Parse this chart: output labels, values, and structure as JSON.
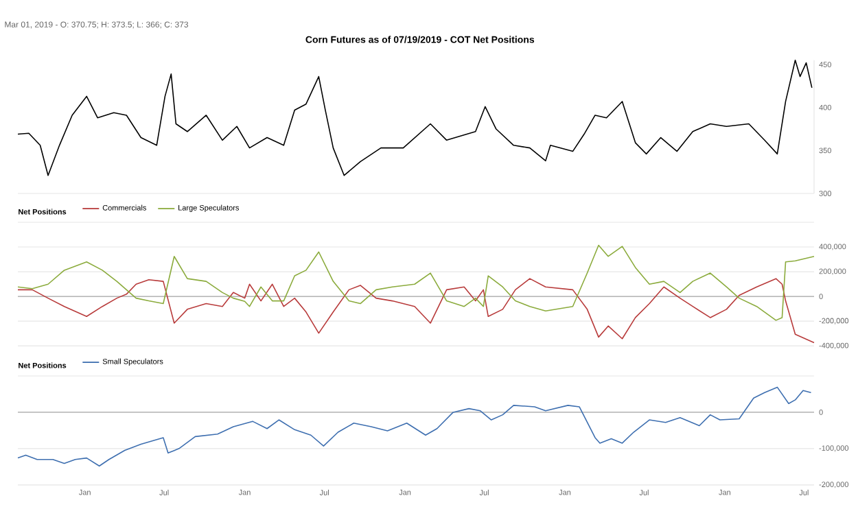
{
  "chart_data": [
    {
      "type": "line",
      "title": "Corn Futures as of 07/19/2019 - COT Net Positions",
      "annotations": [
        "Mar 01, 2019 - O: 370.75; H: 373.5; L: 366; C: 373"
      ],
      "x": [
        "2014-08-01",
        "2014-08-26",
        "2014-09-21",
        "2014-10-09",
        "2014-11-04",
        "2014-12-03",
        "2015-01-05",
        "2015-01-30",
        "2015-03-08",
        "2015-04-06",
        "2015-05-09",
        "2015-06-14",
        "2015-07-03",
        "2015-07-17",
        "2015-07-28",
        "2015-08-23",
        "2015-10-05",
        "2015-11-11",
        "2015-12-14",
        "2016-01-12",
        "2016-02-21",
        "2016-03-30",
        "2016-04-24",
        "2016-05-20",
        "2016-06-18",
        "2016-07-03",
        "2016-07-21",
        "2016-08-15",
        "2016-09-21",
        "2016-11-07",
        "2016-12-28",
        "2017-02-28",
        "2017-04-06",
        "2017-06-11",
        "2017-07-03",
        "2017-07-28",
        "2017-09-06",
        "2017-10-13",
        "2017-11-18",
        "2017-11-29",
        "2018-01-19",
        "2018-02-14",
        "2018-03-11",
        "2018-04-06",
        "2018-05-12",
        "2018-06-11",
        "2018-07-06",
        "2018-08-08",
        "2018-09-14",
        "2018-10-20",
        "2018-11-29",
        "2019-01-05",
        "2019-02-25",
        "2019-04-02",
        "2019-05-01",
        "2019-05-20",
        "2019-06-11",
        "2019-06-22",
        "2019-07-06",
        "2019-07-19"
      ],
      "series": [
        {
          "color": "#000000",
          "values": [
            369,
            370,
            356,
            321,
            356,
            391,
            413,
            388,
            394,
            391,
            365,
            356,
            413,
            439,
            381,
            372,
            391,
            362,
            378,
            353,
            365,
            356,
            397,
            404,
            436,
            397,
            353,
            321,
            337,
            353,
            353,
            381,
            362,
            372,
            401,
            375,
            356,
            353,
            338,
            356,
            349,
            369,
            391,
            388,
            407,
            359,
            346,
            365,
            349,
            372,
            381,
            378,
            381,
            362,
            346,
            407,
            455,
            436,
            452,
            423
          ]
        }
      ],
      "xlim": [
        "2014-08-01",
        "2019-07-24"
      ],
      "ylim": [
        300,
        455
      ],
      "yticks": [
        300,
        350,
        400,
        450
      ],
      "tick_labels": "y"
    },
    {
      "type": "line",
      "legend_title": "Net Positions",
      "legend": "top left",
      "grid": "y",
      "x": [
        "2014-08-01",
        "2014-09-03",
        "2014-10-09",
        "2014-11-15",
        "2015-01-05",
        "2015-02-10",
        "2015-03-15",
        "2015-04-06",
        "2015-04-28",
        "2015-05-27",
        "2015-06-29",
        "2015-07-24",
        "2015-08-23",
        "2015-10-05",
        "2015-11-11",
        "2015-12-06",
        "2016-01-01",
        "2016-01-12",
        "2016-02-07",
        "2016-03-04",
        "2016-03-30",
        "2016-04-24",
        "2016-05-20",
        "2016-06-18",
        "2016-07-21",
        "2016-08-26",
        "2016-09-21",
        "2016-10-27",
        "2016-12-03",
        "2017-01-23",
        "2017-02-28",
        "2017-04-06",
        "2017-05-16",
        "2017-06-11",
        "2017-06-29",
        "2017-07-10",
        "2017-08-12",
        "2017-09-10",
        "2017-10-13",
        "2017-11-18",
        "2018-01-19",
        "2018-02-21",
        "2018-03-19",
        "2018-04-10",
        "2018-05-12",
        "2018-06-11",
        "2018-07-13",
        "2018-08-15",
        "2018-09-21",
        "2018-10-20",
        "2018-11-29",
        "2019-01-05",
        "2019-02-03",
        "2019-03-15",
        "2019-04-28",
        "2019-05-12",
        "2019-05-20",
        "2019-06-11",
        "2019-07-24"
      ],
      "series": [
        {
          "name": "Commercials",
          "color": "#b83b3b",
          "values": [
            54000,
            54000,
            -14000,
            -81000,
            -162000,
            -81000,
            -14000,
            18000,
            99000,
            135000,
            122000,
            -216000,
            -104000,
            -58000,
            -81000,
            32000,
            -14000,
            99000,
            -36000,
            99000,
            -81000,
            -14000,
            -126000,
            -297000,
            -126000,
            54000,
            90000,
            -14000,
            -36000,
            -81000,
            -216000,
            54000,
            77000,
            -36000,
            54000,
            -162000,
            -104000,
            54000,
            144000,
            77000,
            54000,
            -104000,
            -329000,
            -239000,
            -342000,
            -171000,
            -58000,
            77000,
            -14000,
            -81000,
            -171000,
            -104000,
            9000,
            77000,
            144000,
            99000,
            -36000,
            -306000,
            -374000
          ]
        },
        {
          "name": "Large Speculators",
          "color": "#8bab3c",
          "values": [
            77000,
            63000,
            99000,
            212000,
            279000,
            212000,
            122000,
            54000,
            -14000,
            -36000,
            -58000,
            324000,
            144000,
            122000,
            32000,
            -14000,
            -40000,
            -81000,
            77000,
            -36000,
            -36000,
            167000,
            212000,
            360000,
            122000,
            -36000,
            -58000,
            54000,
            77000,
            99000,
            189000,
            -36000,
            -81000,
            -14000,
            -81000,
            167000,
            77000,
            -36000,
            -81000,
            -117000,
            -81000,
            189000,
            414000,
            324000,
            405000,
            234000,
            99000,
            122000,
            32000,
            122000,
            189000,
            77000,
            -14000,
            -81000,
            -193000,
            -171000,
            279000,
            288000,
            324000
          ]
        }
      ],
      "ref_lines": [
        {
          "axis": "y",
          "value": 0,
          "color": "#aaaaaa"
        }
      ],
      "xlim": [
        "2014-08-01",
        "2019-07-24"
      ],
      "ylim": [
        -420000,
        600000
      ],
      "yticks": [
        {
          "value": -400000,
          "label": "-400,000"
        },
        {
          "value": -200000,
          "label": "-200,000"
        },
        0,
        {
          "value": 200000,
          "label": "200,000"
        },
        {
          "value": 400000,
          "label": "400,000"
        },
        {
          "value": 600000,
          "label": null
        }
      ],
      "tick_labels": "y"
    },
    {
      "type": "line",
      "legend_title": "Net Positions",
      "legend": "top left",
      "grid": "y",
      "x": [
        "2014-08-01",
        "2014-08-19",
        "2014-09-14",
        "2014-10-20",
        "2014-11-15",
        "2014-12-10",
        "2015-01-05",
        "2015-02-03",
        "2015-02-25",
        "2015-04-02",
        "2015-05-09",
        "2015-06-29",
        "2015-07-10",
        "2015-08-04",
        "2015-09-10",
        "2015-10-31",
        "2015-12-06",
        "2016-01-19",
        "2016-02-21",
        "2016-03-19",
        "2016-04-24",
        "2016-05-31",
        "2016-06-29",
        "2016-08-01",
        "2016-09-06",
        "2016-10-16",
        "2016-11-22",
        "2017-01-05",
        "2017-02-17",
        "2017-03-15",
        "2017-04-21",
        "2017-05-27",
        "2017-06-22",
        "2017-07-17",
        "2017-08-12",
        "2017-09-06",
        "2017-10-24",
        "2017-11-18",
        "2018-01-08",
        "2018-02-03",
        "2018-03-11",
        "2018-03-22",
        "2018-04-17",
        "2018-05-12",
        "2018-06-07",
        "2018-07-13",
        "2018-08-19",
        "2018-09-21",
        "2018-11-04",
        "2018-11-29",
        "2018-12-21",
        "2019-02-03",
        "2019-03-08",
        "2019-04-02",
        "2019-05-01",
        "2019-05-27",
        "2019-06-11",
        "2019-06-29",
        "2019-07-17"
      ],
      "series": [
        {
          "name": "Small Speculators",
          "color": "#3e6fb0",
          "values": [
            -126000,
            -118000,
            -130000,
            -130000,
            -141000,
            -130000,
            -126000,
            -148000,
            -130000,
            -105000,
            -88000,
            -70000,
            -112000,
            -100000,
            -67000,
            -60000,
            -40000,
            -25000,
            -45000,
            -21000,
            -48000,
            -63000,
            -93000,
            -55000,
            -30000,
            -40000,
            -51000,
            -30000,
            -63000,
            -45000,
            0,
            10000,
            4000,
            -21000,
            -7000,
            19000,
            15000,
            4000,
            19000,
            15000,
            -70000,
            -85000,
            -73000,
            -85000,
            -55000,
            -21000,
            -28000,
            -15000,
            -37000,
            -7000,
            -21000,
            -18000,
            39000,
            54000,
            69000,
            24000,
            34000,
            60000,
            54000
          ]
        }
      ],
      "ref_lines": [
        {
          "axis": "y",
          "value": 0,
          "color": "#aaaaaa"
        }
      ],
      "xlim": [
        "2014-08-01",
        "2019-07-24"
      ],
      "xticks": [
        {
          "value": "2015-01-01",
          "label": "Jan"
        },
        {
          "value": "2015-07-01",
          "label": "Jul"
        },
        {
          "value": "2016-01-01",
          "label": "Jan"
        },
        {
          "value": "2016-07-01",
          "label": "Jul"
        },
        {
          "value": "2017-01-01",
          "label": "Jan"
        },
        {
          "value": "2017-07-01",
          "label": "Jul"
        },
        {
          "value": "2018-01-01",
          "label": "Jan"
        },
        {
          "value": "2018-07-01",
          "label": "Jul"
        },
        {
          "value": "2019-01-01",
          "label": "Jan"
        },
        {
          "value": "2019-07-01",
          "label": "Jul"
        }
      ],
      "ylim": [
        -200000,
        100000
      ],
      "yticks": [
        {
          "value": -200000,
          "label": "-200,000"
        },
        {
          "value": -100000,
          "label": "-100,000"
        },
        0,
        {
          "value": 100000,
          "label": null
        }
      ]
    }
  ]
}
